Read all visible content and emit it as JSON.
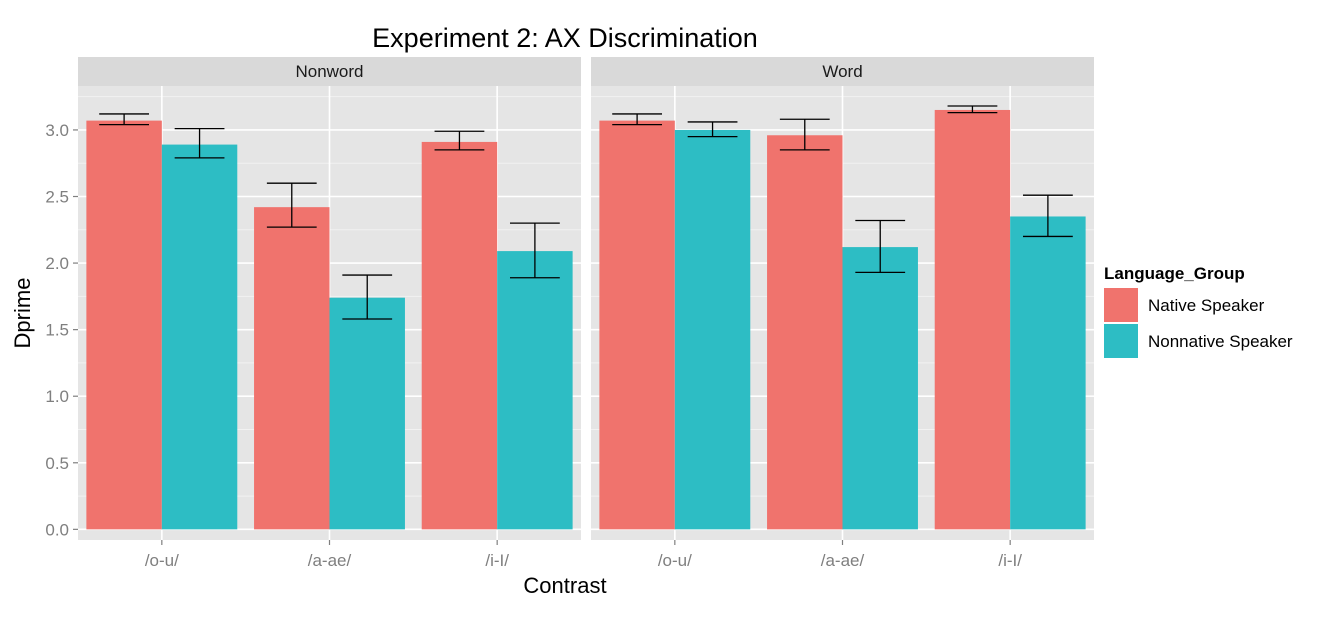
{
  "chart_data": {
    "type": "bar",
    "title": "Experiment 2:  AX Discrimination",
    "xlabel": "Contrast",
    "ylabel": "Dprime",
    "ylim": [
      -0.08,
      3.33
    ],
    "yticks": [
      "0.0",
      "0.5",
      "1.0",
      "1.5",
      "2.0",
      "2.5",
      "3.0"
    ],
    "grid": true,
    "legend_position": "right",
    "legend": {
      "title": "Language_Group",
      "entries": [
        "Native Speaker",
        "Nonnative Speaker"
      ]
    },
    "categories": [
      "/o-u/",
      "/a-ae/",
      "/i-I/"
    ],
    "colors": {
      "Native Speaker": "#F0736D",
      "Nonnative Speaker": "#2DBDC4"
    },
    "panels": [
      {
        "name": "Nonword",
        "series": [
          {
            "name": "Native Speaker",
            "values": [
              3.07,
              2.42,
              2.91
            ],
            "error_low": [
              3.04,
              2.27,
              2.85
            ],
            "error_high": [
              3.12,
              2.6,
              2.99
            ]
          },
          {
            "name": "Nonnative Speaker",
            "values": [
              2.89,
              1.74,
              2.09
            ],
            "error_low": [
              2.79,
              1.58,
              1.89
            ],
            "error_high": [
              3.01,
              1.91,
              2.3
            ]
          }
        ]
      },
      {
        "name": "Word",
        "series": [
          {
            "name": "Native Speaker",
            "values": [
              3.07,
              2.96,
              3.15
            ],
            "error_low": [
              3.04,
              2.85,
              3.13
            ],
            "error_high": [
              3.12,
              3.08,
              3.18
            ]
          },
          {
            "name": "Nonnative Speaker",
            "values": [
              3.0,
              2.12,
              2.35
            ],
            "error_low": [
              2.95,
              1.93,
              2.2
            ],
            "error_high": [
              3.06,
              2.32,
              2.51
            ]
          }
        ]
      }
    ]
  }
}
